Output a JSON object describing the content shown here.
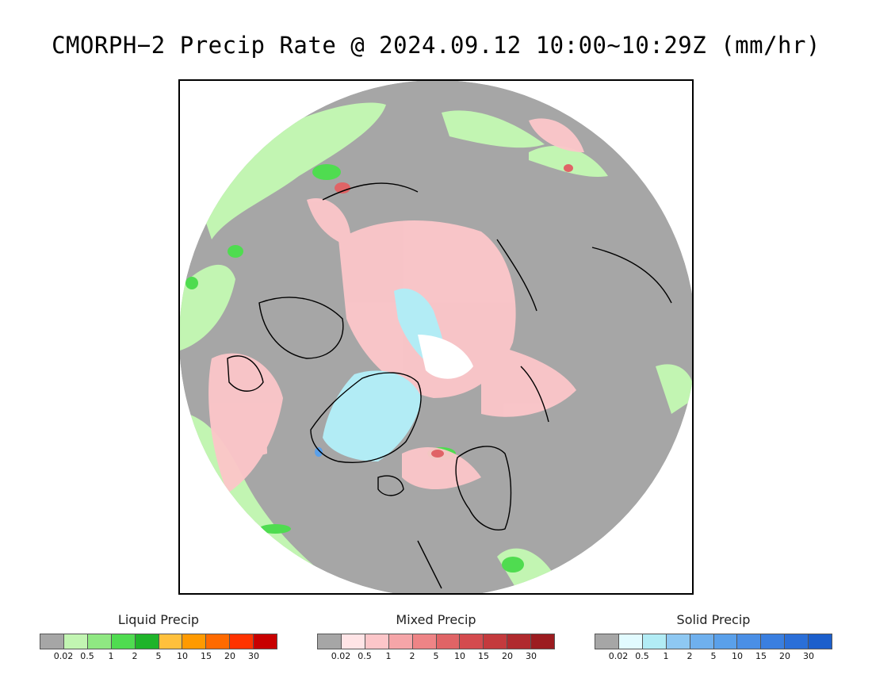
{
  "title": "CMORPH−2 Precip Rate @ 2024.09.12 10:00∼10:29Z (mm/hr)",
  "map": {
    "projection": "north polar stereographic",
    "background_color": "#a6a6a6",
    "features": [
      "coastlines",
      "Greenland ice",
      "Scandinavia",
      "Iceland",
      "Arctic Ocean",
      "Canadian Arctic Archipelago"
    ]
  },
  "legends": [
    {
      "title": "Liquid Precip",
      "colors": [
        "#a6a6a6",
        "#c2f5b2",
        "#8fe882",
        "#4fdc50",
        "#1fb42a",
        "#ffc03c",
        "#ff9a00",
        "#ff6a00",
        "#ff3300",
        "#c80000"
      ],
      "ticks": [
        "0.02",
        "0.5",
        "1",
        "2",
        "5",
        "10",
        "15",
        "20",
        "30"
      ]
    },
    {
      "title": "Mixed Precip",
      "colors": [
        "#a6a6a6",
        "#ffe4e6",
        "#fcc6c9",
        "#f5a5a8",
        "#ee8486",
        "#e06466",
        "#d44b4e",
        "#c43a3d",
        "#b02a2e",
        "#9c1c20"
      ],
      "ticks": [
        "0.02",
        "0.5",
        "1",
        "2",
        "5",
        "10",
        "15",
        "20",
        "30"
      ]
    },
    {
      "title": "Solid Precip",
      "colors": [
        "#a6a6a6",
        "#e2fbff",
        "#b2ecf5",
        "#8ec8f2",
        "#6fb0ee",
        "#5aa0ea",
        "#4a8fe6",
        "#3a7fe0",
        "#2b6fd8",
        "#1c5fcc"
      ],
      "ticks": [
        "0.02",
        "0.5",
        "1",
        "2",
        "5",
        "10",
        "15",
        "20",
        "30"
      ]
    }
  ]
}
